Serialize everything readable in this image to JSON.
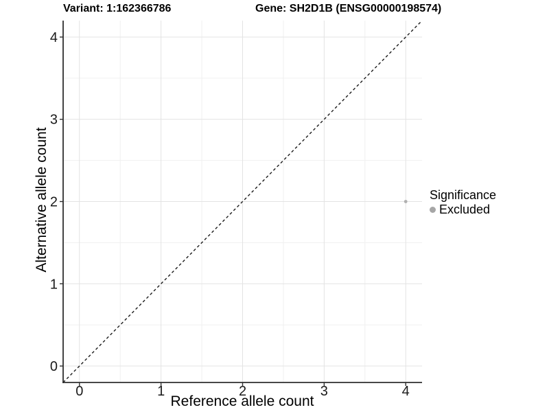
{
  "chart_data": {
    "type": "scatter",
    "title_variant": "Variant: 1:162366786",
    "title_gene": "Gene: SH2D1B (ENSG00000198574)",
    "xlabel": "Reference allele count",
    "ylabel": "Alternative allele count",
    "xlim": [
      -0.2,
      4.2
    ],
    "ylim": [
      -0.2,
      4.2
    ],
    "x_ticks": [
      0,
      1,
      2,
      3,
      4
    ],
    "y_ticks": [
      0,
      1,
      2,
      3,
      4
    ],
    "x_minor": [
      0.5,
      1.5,
      2.5,
      3.5
    ],
    "y_minor": [
      0.5,
      1.5,
      2.5,
      3.5
    ],
    "grid": true,
    "identity_line": {
      "style": "dashed",
      "from": [
        -0.2,
        -0.2
      ],
      "to": [
        4.2,
        4.2
      ],
      "color": "#1a1a1a"
    },
    "points": [
      {
        "x": 4,
        "y": 2,
        "series": "Excluded",
        "color": "#b0b0b0",
        "radius": 2.4
      }
    ],
    "legend": {
      "title": "Significance",
      "position": "right",
      "items": [
        {
          "label": "Excluded",
          "color": "#a6a6a6"
        }
      ]
    },
    "colors": {
      "grid_major": "#e3e3e3",
      "grid_minor": "#f0f0f0",
      "axis": "#2e2e2e",
      "tick_text": "#1a1a1a",
      "background": "#ffffff"
    }
  }
}
